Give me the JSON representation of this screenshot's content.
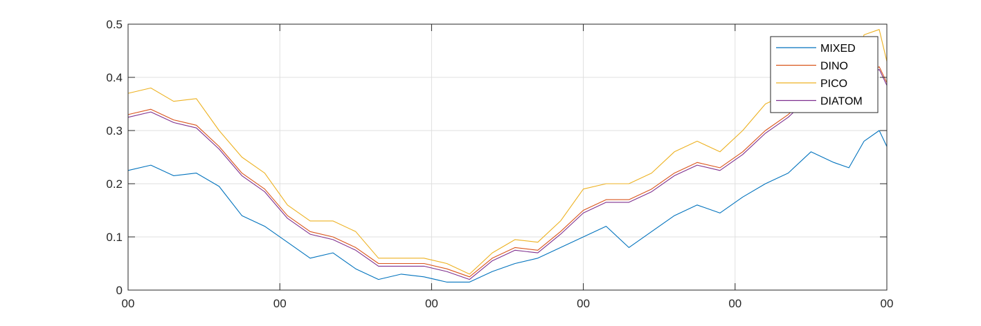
{
  "chart_data": {
    "type": "line",
    "title": "",
    "xlabel": "",
    "ylabel": "",
    "x_tick_labels": [
      "00",
      "00",
      "00",
      "00",
      "00",
      "00"
    ],
    "y_tick_labels": [
      "0",
      "0.1",
      "0.2",
      "0.3",
      "0.4",
      "0.5"
    ],
    "y_ticks": [
      0,
      0.1,
      0.2,
      0.3,
      0.4,
      0.5
    ],
    "xlim": [
      0,
      100
    ],
    "ylim": [
      0,
      0.5
    ],
    "grid": true,
    "legend_position": "top-right",
    "x": [
      0,
      3,
      6,
      9,
      12,
      15,
      18,
      21,
      24,
      27,
      30,
      33,
      36,
      39,
      42,
      45,
      48,
      51,
      54,
      57,
      60,
      63,
      66,
      69,
      72,
      75,
      78,
      81,
      84,
      87,
      90,
      93,
      95,
      97,
      99,
      100
    ],
    "series": [
      {
        "name": "MIXED",
        "color": "#0072BD",
        "values": [
          0.225,
          0.235,
          0.215,
          0.22,
          0.195,
          0.14,
          0.12,
          0.09,
          0.06,
          0.07,
          0.04,
          0.02,
          0.03,
          0.025,
          0.015,
          0.015,
          0.035,
          0.05,
          0.06,
          0.08,
          0.1,
          0.12,
          0.08,
          0.11,
          0.14,
          0.16,
          0.145,
          0.175,
          0.2,
          0.22,
          0.26,
          0.24,
          0.23,
          0.28,
          0.3,
          0.27
        ]
      },
      {
        "name": "DINO",
        "color": "#D95319",
        "values": [
          0.33,
          0.34,
          0.32,
          0.31,
          0.27,
          0.22,
          0.19,
          0.14,
          0.11,
          0.1,
          0.08,
          0.05,
          0.05,
          0.05,
          0.04,
          0.025,
          0.06,
          0.08,
          0.075,
          0.11,
          0.15,
          0.17,
          0.17,
          0.19,
          0.22,
          0.24,
          0.23,
          0.26,
          0.3,
          0.33,
          0.37,
          0.34,
          0.34,
          0.4,
          0.42,
          0.39
        ]
      },
      {
        "name": "PICO",
        "color": "#EDB120",
        "values": [
          0.37,
          0.38,
          0.355,
          0.36,
          0.3,
          0.25,
          0.22,
          0.16,
          0.13,
          0.13,
          0.11,
          0.06,
          0.06,
          0.06,
          0.05,
          0.03,
          0.07,
          0.095,
          0.09,
          0.13,
          0.19,
          0.2,
          0.2,
          0.22,
          0.26,
          0.28,
          0.26,
          0.3,
          0.35,
          0.37,
          0.41,
          0.37,
          0.4,
          0.48,
          0.49,
          0.43
        ]
      },
      {
        "name": "DIATOM",
        "color": "#7E2F8E",
        "values": [
          0.325,
          0.335,
          0.315,
          0.305,
          0.265,
          0.215,
          0.185,
          0.135,
          0.105,
          0.095,
          0.075,
          0.045,
          0.045,
          0.045,
          0.035,
          0.02,
          0.055,
          0.075,
          0.07,
          0.105,
          0.145,
          0.165,
          0.165,
          0.185,
          0.215,
          0.235,
          0.225,
          0.255,
          0.295,
          0.325,
          0.365,
          0.335,
          0.335,
          0.395,
          0.415,
          0.385
        ]
      }
    ]
  }
}
